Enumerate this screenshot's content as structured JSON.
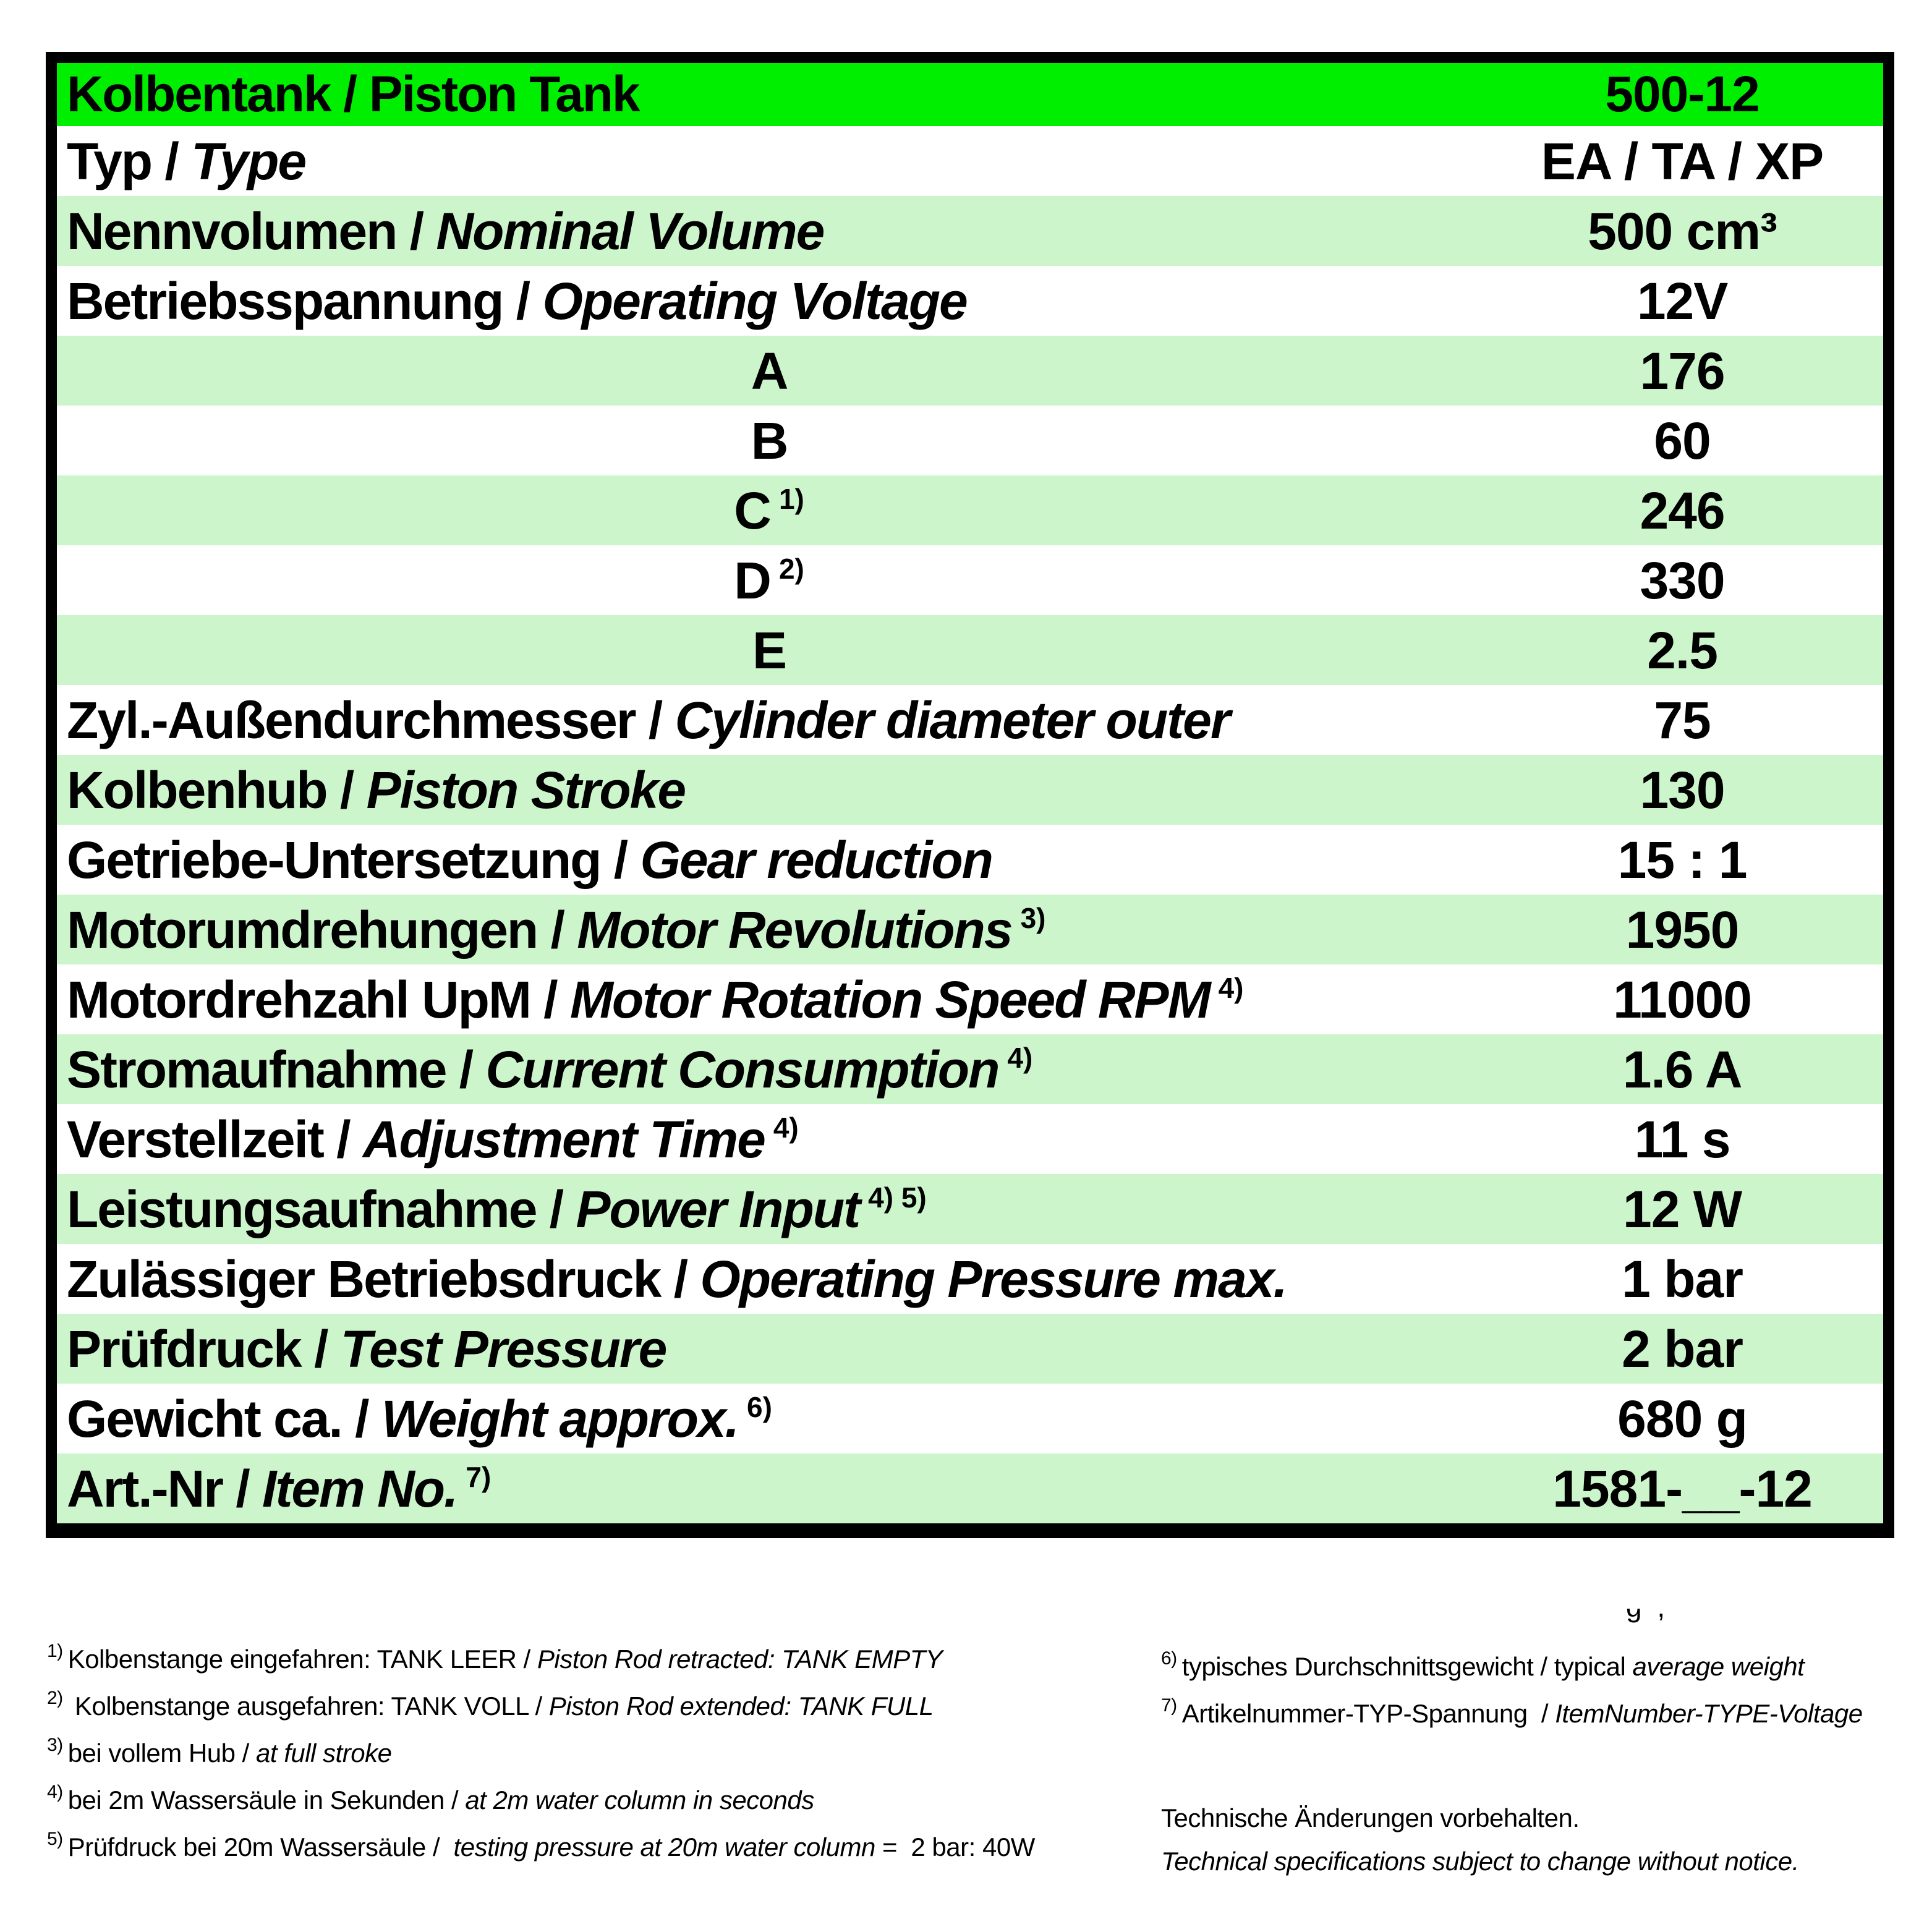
{
  "colors": {
    "header_green": "#00EE00",
    "row_green": "#CCF5CC",
    "ink": "#000000"
  },
  "table": {
    "header": {
      "label": "Kolbentank / Piston Tank",
      "value": "500-12"
    },
    "rows": [
      {
        "de": "Typ",
        "en": "Type",
        "value": "EA / TA / XP"
      },
      {
        "de": "Nennvolumen",
        "en": "Nominal Volume",
        "value": "500 cm³"
      },
      {
        "de": "Betriebsspannung",
        "en": "Operating Voltage",
        "value": "12V"
      },
      {
        "de": "A",
        "center": true,
        "value": "176"
      },
      {
        "de": "B",
        "center": true,
        "value": "60"
      },
      {
        "de": "C",
        "center": true,
        "sup": "1)",
        "value": "246"
      },
      {
        "de": "D",
        "center": true,
        "sup": "2)",
        "value": "330"
      },
      {
        "de": "E",
        "center": true,
        "value": "2.5"
      },
      {
        "de": "Zyl.-Außendurchmesser",
        "en": "Cylinder diameter outer",
        "value": "75"
      },
      {
        "de": "Kolbenhub",
        "en": "Piston Stroke",
        "value": "130"
      },
      {
        "de": "Getriebe-Untersetzung",
        "en": "Gear reduction",
        "value": "15 : 1"
      },
      {
        "de": "Motorumdrehungen",
        "en": "Motor Revolutions",
        "sup": "3)",
        "value": "1950"
      },
      {
        "de": "Motordrehzahl UpM",
        "en": "Motor Rotation Speed RPM",
        "sup": "4)",
        "value": "11000"
      },
      {
        "de": "Stromaufnahme",
        "en": "Current Consumption",
        "sup": "4)",
        "value": "1.6 A"
      },
      {
        "de": "Verstellzeit",
        "en": "Adjustment Time",
        "sup": "4)",
        "value": "11 s"
      },
      {
        "de": "Leistungsaufnahme",
        "en": "Power Input",
        "sup": "4) 5)",
        "value": "12 W"
      },
      {
        "de": "Zulässiger Betriebsdruck",
        "en": "Operating Pressure max.",
        "value": "1 bar"
      },
      {
        "de": "Prüfdruck",
        "en": "Test Pressure",
        "value": "2 bar"
      },
      {
        "de": "Gewicht ca.",
        "en": "Weight approx.",
        "sup": "6)",
        "value": "680 g"
      },
      {
        "de": "Art.-Nr",
        "en": "Item No.",
        "sup": "7)",
        "value": "1581-__-12"
      }
    ]
  },
  "footnotes_left": [
    {
      "sup": "1)",
      "pre": "Kolbenstange eingefahren: TANK LEER / ",
      "italic": "Piston Rod retracted: TANK EMPTY",
      "post": ""
    },
    {
      "sup": "2)",
      "pre": " Kolbenstange ausgefahren: TANK VOLL / ",
      "italic": "Piston Rod extended: TANK FULL",
      "post": ""
    },
    {
      "sup": "3)",
      "pre": "bei vollem Hub / ",
      "italic": "at full stroke",
      "post": ""
    },
    {
      "sup": "4)",
      "pre": "bei 2m Wassersäule in Sekunden / ",
      "italic": "at 2m water column in seconds",
      "post": ""
    },
    {
      "sup": "5)",
      "pre": "Prüfdruck bei 20m Wassersäule /  ",
      "italic": "testing pressure at 20m water column",
      "post": " =  2 bar: 40W"
    }
  ],
  "footnotes_right": [
    {
      "sup": "6)",
      "pre": "typisches Durchschnittsgewicht / typical ",
      "italic": "average weight",
      "post": ""
    },
    {
      "sup": "7)",
      "pre": "Artikelnummer-TYP-Spannung  / ",
      "italic": "ItemNumber-TYPE-Voltage",
      "post": ""
    }
  ],
  "clipped_fragment": "g ,",
  "notices": [
    {
      "text": "Technische Änderungen vorbehalten."
    },
    {
      "text": "Technical specifications subject to change without notice."
    }
  ]
}
